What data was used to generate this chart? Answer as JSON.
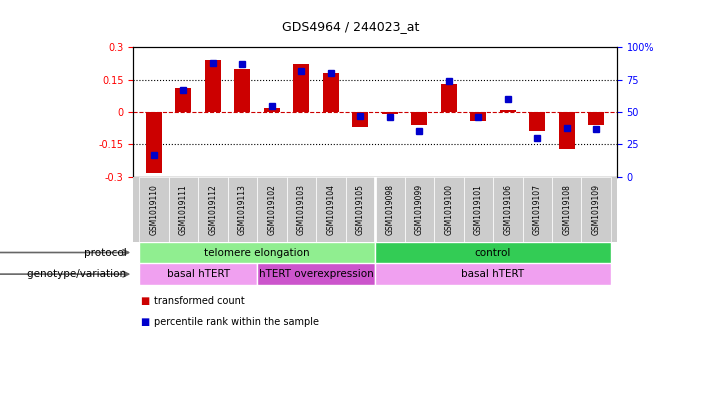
{
  "title": "GDS4964 / 244023_at",
  "samples": [
    "GSM1019110",
    "GSM1019111",
    "GSM1019112",
    "GSM1019113",
    "GSM1019102",
    "GSM1019103",
    "GSM1019104",
    "GSM1019105",
    "GSM1019098",
    "GSM1019099",
    "GSM1019100",
    "GSM1019101",
    "GSM1019106",
    "GSM1019107",
    "GSM1019108",
    "GSM1019109"
  ],
  "transformed_count": [
    -0.28,
    0.11,
    0.24,
    0.2,
    0.02,
    0.22,
    0.18,
    -0.07,
    -0.01,
    -0.06,
    0.13,
    -0.04,
    0.01,
    -0.09,
    -0.17,
    -0.06
  ],
  "percentile_rank": [
    17,
    67,
    88,
    87,
    55,
    82,
    80,
    47,
    46,
    35,
    74,
    46,
    60,
    30,
    38,
    37
  ],
  "ylim_left": [
    -0.3,
    0.3
  ],
  "ylim_right": [
    0,
    100
  ],
  "bar_color": "#cc0000",
  "dot_color": "#0000cc",
  "hline_color": "#cc0000",
  "y_ticks_left": [
    -0.3,
    -0.15,
    0,
    0.15,
    0.3
  ],
  "y_ticks_right": [
    0,
    25,
    50,
    75,
    100
  ],
  "protocol_groups": [
    {
      "label": "telomere elongation",
      "start": 0,
      "end": 7,
      "color": "#90ee90"
    },
    {
      "label": "control",
      "start": 8,
      "end": 15,
      "color": "#33cc55"
    }
  ],
  "genotype_groups": [
    {
      "label": "basal hTERT",
      "start": 0,
      "end": 3,
      "color": "#f0a0f0"
    },
    {
      "label": "hTERT overexpression",
      "start": 4,
      "end": 7,
      "color": "#cc55cc"
    },
    {
      "label": "basal hTERT",
      "start": 8,
      "end": 15,
      "color": "#f0a0f0"
    }
  ],
  "legend_items": [
    {
      "color": "#cc0000",
      "label": "transformed count"
    },
    {
      "color": "#0000cc",
      "label": "percentile rank within the sample"
    }
  ],
  "bg_color": "#ffffff",
  "tick_bg_color": "#cccccc"
}
